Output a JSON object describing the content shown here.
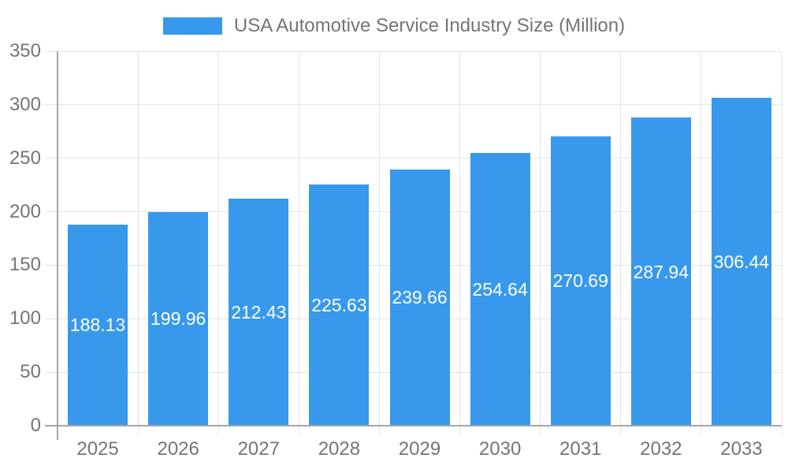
{
  "colors": {
    "bar": "#3899EC",
    "grid": "#E4E4E4",
    "axis": "#A6A6A6",
    "tick_text": "#757575",
    "value_text": "#FFFFFF",
    "background": "#FFFFFF"
  },
  "legend": {
    "label": "USA Automotive Service Industry Size (Million)"
  },
  "chart_data": {
    "type": "bar",
    "title": "USA Automotive Service Industry Size (Million)",
    "categories": [
      "2025",
      "2026",
      "2027",
      "2028",
      "2029",
      "2030",
      "2031",
      "2032",
      "2033"
    ],
    "values": [
      188.13,
      199.96,
      212.43,
      225.63,
      239.66,
      254.64,
      270.69,
      287.94,
      306.44
    ],
    "series_name": "USA Automotive Service Industry Size (Million)",
    "xlabel": "",
    "ylabel": "",
    "ylim": [
      0,
      350
    ],
    "ytick_step": 50,
    "ytick_labels": [
      "0",
      "50",
      "100",
      "150",
      "200",
      "250",
      "300",
      "350"
    ],
    "grid": true,
    "legend_position": "top-center",
    "value_label_position": "inside-center",
    "value_label_decimals": 2
  }
}
